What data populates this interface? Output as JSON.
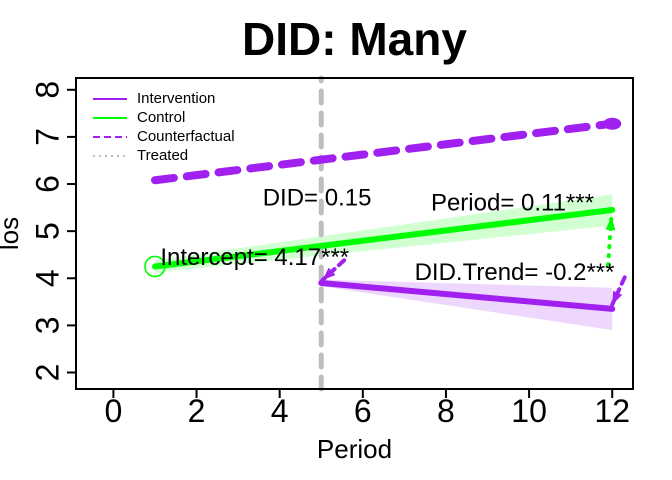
{
  "figure": {
    "background": "#ffffff"
  },
  "chart_data": {
    "type": "line",
    "title": "DID: Many",
    "xlabel": "Period",
    "ylabel": "los",
    "xlim": [
      -0.9,
      12.5
    ],
    "ylim": [
      1.65,
      8.25
    ],
    "xticks": [
      0,
      2,
      4,
      6,
      8,
      10,
      12
    ],
    "yticks": [
      2,
      3,
      4,
      5,
      6,
      7,
      8
    ],
    "grid": false,
    "colors": {
      "purple": "#A020F0",
      "green": "#00FF00",
      "gray": "#BEBEBE",
      "purple_band": "rgba(160,32,240,0.18)",
      "green_band": "rgba(0,255,0,0.18)"
    },
    "legend": {
      "position": "top-left",
      "entries": [
        {
          "label": "Intervention",
          "color": "#A020F0",
          "style": "solid"
        },
        {
          "label": "Control",
          "color": "#00FF00",
          "style": "solid"
        },
        {
          "label": "Counterfactual",
          "color": "#A020F0",
          "style": "dashed"
        },
        {
          "label": "Treated",
          "color": "#BEBEBE",
          "style": "dotted"
        }
      ]
    },
    "vline": {
      "x": 5,
      "color": "#BEBEBE",
      "style": "dashed",
      "width": 5
    },
    "series": [
      {
        "name": "Counterfactual",
        "color": "#A020F0",
        "style": "dashed",
        "width": 8,
        "x": [
          1,
          12
        ],
        "y": [
          6.08,
          7.28
        ],
        "end_marker": {
          "type": "filled-dot",
          "x": 12,
          "y": 7.28
        }
      },
      {
        "name": "Control",
        "color": "#00FF00",
        "style": "solid",
        "width": 6,
        "x": [
          1,
          12
        ],
        "y": [
          4.25,
          5.45
        ],
        "band": {
          "upper": [
            4.38,
            5.78
          ],
          "lower": [
            4.12,
            5.12
          ],
          "fill": "rgba(0,255,0,0.18)"
        },
        "start_marker": {
          "type": "open-circle",
          "x": 1,
          "y": 4.25
        }
      },
      {
        "name": "Intervention",
        "color": "#A020F0",
        "style": "solid",
        "width": 6,
        "x": [
          5,
          12
        ],
        "y": [
          3.9,
          3.35
        ],
        "band": {
          "upper": [
            3.97,
            3.8
          ],
          "lower": [
            3.83,
            2.9
          ],
          "fill": "rgba(160,32,240,0.18)"
        }
      }
    ],
    "arrows": [
      {
        "color": "#A020F0",
        "style": "dashed",
        "from": [
          5.55,
          4.38
        ],
        "to": [
          5.03,
          3.96
        ]
      },
      {
        "color": "#00FF00",
        "style": "dotted",
        "from": [
          11.9,
          4.28
        ],
        "to": [
          11.98,
          5.3
        ]
      },
      {
        "color": "#A020F0",
        "style": "dashed",
        "from": [
          12.3,
          4.02
        ],
        "to": [
          12.0,
          3.44
        ]
      }
    ],
    "annotations": [
      {
        "text": "DID= 0.15",
        "x": 4.9,
        "y": 5.68
      },
      {
        "text": "Period= 0.11***",
        "x": 9.6,
        "y": 5.57
      },
      {
        "text": "Intercept= 4.17***",
        "x": 3.4,
        "y": 4.42
      },
      {
        "text": "DID.Trend= -0.2***",
        "x": 9.65,
        "y": 4.1
      }
    ]
  }
}
